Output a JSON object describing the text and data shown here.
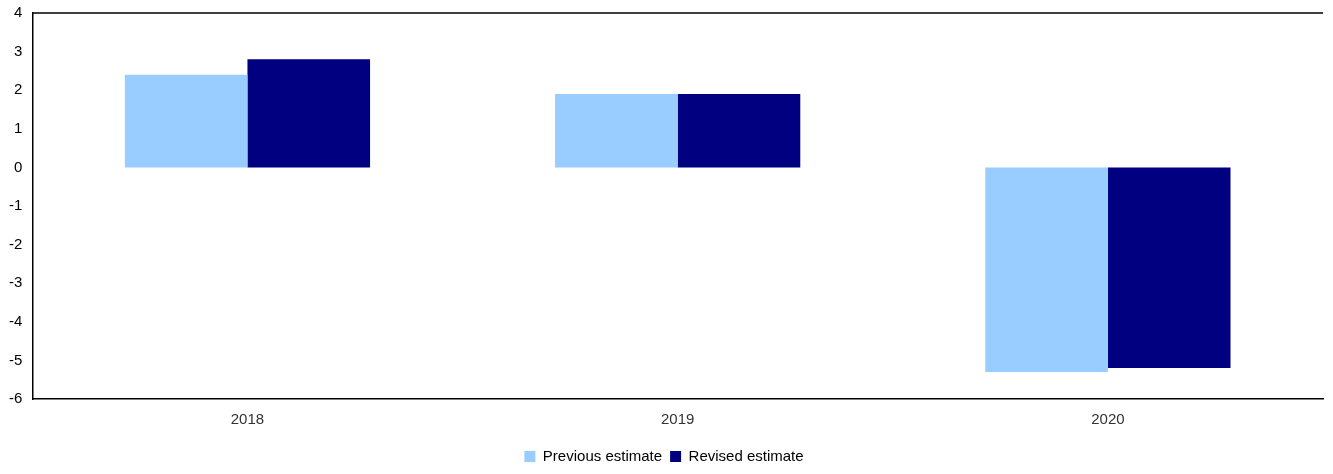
{
  "chart_data": {
    "type": "bar",
    "categories": [
      "2018",
      "2019",
      "2020"
    ],
    "series": [
      {
        "name": "Previous estimate",
        "color": "#99ccff",
        "values": [
          2.4,
          1.9,
          -5.3
        ]
      },
      {
        "name": "Revised estimate",
        "color": "#000080",
        "values": [
          2.8,
          1.9,
          -5.2
        ]
      }
    ],
    "ylim": [
      -6,
      4
    ],
    "yticks": [
      -6,
      -5,
      -4,
      -3,
      -2,
      -1,
      0,
      1,
      2,
      3,
      4
    ],
    "grid": false,
    "legend": "bottom"
  }
}
